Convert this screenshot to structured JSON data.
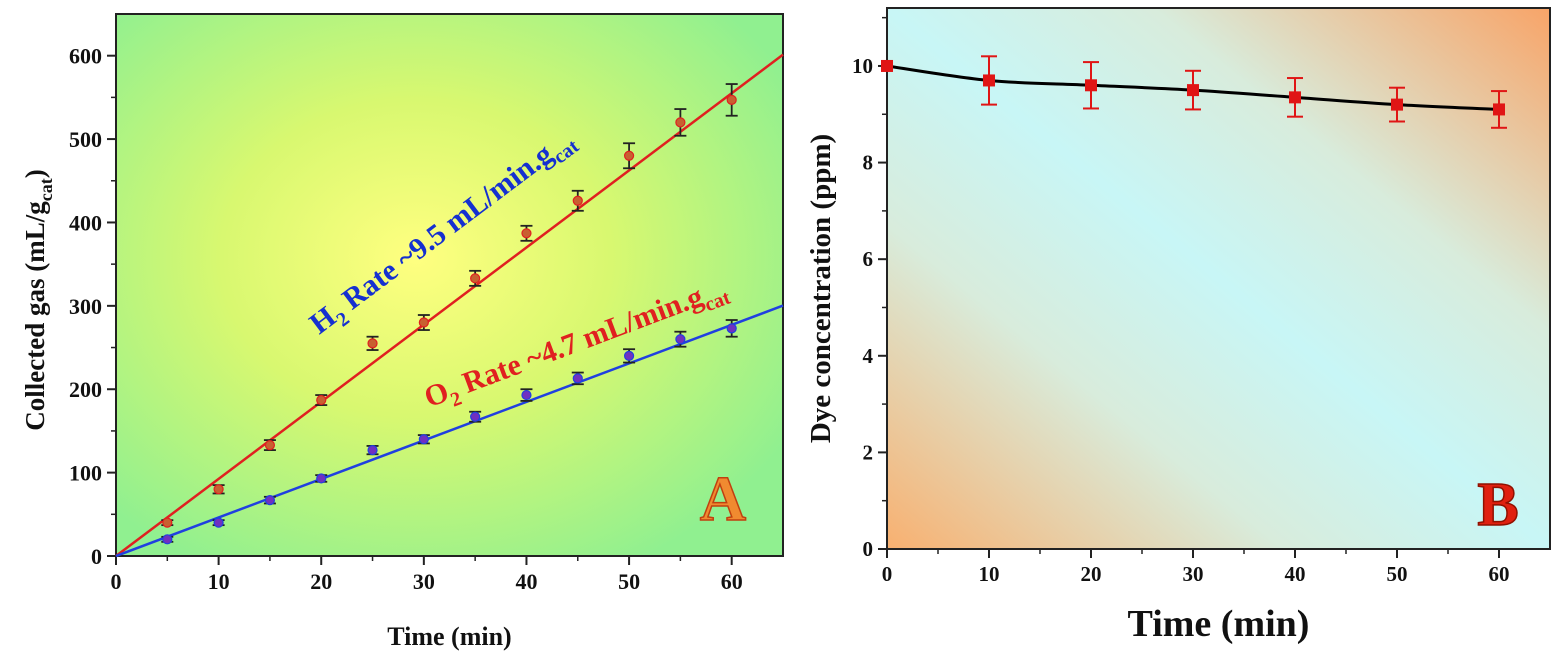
{
  "chart_data": [
    {
      "type": "scatter",
      "panel_label": "A",
      "xlabel": "Time (min)",
      "ylabel_main": "Collected gas (mL/g",
      "ylabel_sub": "cat",
      "ylabel_close": ")",
      "xlim": [
        0,
        65
      ],
      "ylim": [
        0,
        650
      ],
      "xticks": [
        0,
        10,
        20,
        30,
        40,
        50,
        60
      ],
      "yticks": [
        0,
        100,
        200,
        300,
        400,
        500,
        600
      ],
      "grid": false,
      "background": "green-yellow radial gradient",
      "series": [
        {
          "label": "H2",
          "color": "#e02020",
          "marker_color": "#c86030",
          "x": [
            5,
            10,
            15,
            20,
            25,
            30,
            35,
            40,
            45,
            50,
            55,
            60
          ],
          "y": [
            40,
            80,
            133,
            187,
            255,
            280,
            333,
            387,
            426,
            480,
            520,
            547
          ],
          "err": [
            3,
            5,
            6,
            6,
            8,
            9,
            9,
            9,
            12,
            15,
            16,
            19
          ],
          "fit_slope": 9.25
        },
        {
          "label": "O2",
          "color": "#2040e0",
          "marker_color": "#7030c0",
          "x": [
            5,
            10,
            15,
            20,
            25,
            30,
            35,
            40,
            45,
            50,
            55,
            60
          ],
          "y": [
            20,
            40,
            67,
            93,
            127,
            140,
            167,
            193,
            213,
            240,
            260,
            273
          ],
          "err": [
            3,
            3,
            4,
            4,
            5,
            5,
            6,
            7,
            7,
            8,
            9,
            10
          ],
          "fit_slope": 4.62
        }
      ],
      "annotations": [
        {
          "pre": "H",
          "pre_sub": "2",
          "text": " Rate ~9.5 mL/min.g",
          "sub": "cat",
          "color": "#1530d0"
        },
        {
          "pre": "O",
          "pre_sub": "2",
          "text": " Rate ~4.7 mL/min.g",
          "sub": "cat",
          "color": "#e02020"
        }
      ]
    },
    {
      "type": "line",
      "panel_label": "B",
      "xlabel": "Time (min)",
      "ylabel": "Dye concentration (ppm)",
      "xlim": [
        0,
        65
      ],
      "ylim": [
        0,
        11.2
      ],
      "xticks": [
        0,
        10,
        20,
        30,
        40,
        50,
        60
      ],
      "yticks": [
        0,
        2,
        4,
        6,
        8,
        10
      ],
      "grid": false,
      "background": "orange-cyan diagonal gradient",
      "series": [
        {
          "color": "#000000",
          "marker_color": "#e01515",
          "x": [
            0,
            10,
            20,
            30,
            40,
            50,
            60
          ],
          "y": [
            10.0,
            9.7,
            9.6,
            9.5,
            9.35,
            9.2,
            9.1
          ],
          "err": [
            0,
            0.5,
            0.48,
            0.4,
            0.4,
            0.35,
            0.38
          ]
        }
      ]
    }
  ]
}
